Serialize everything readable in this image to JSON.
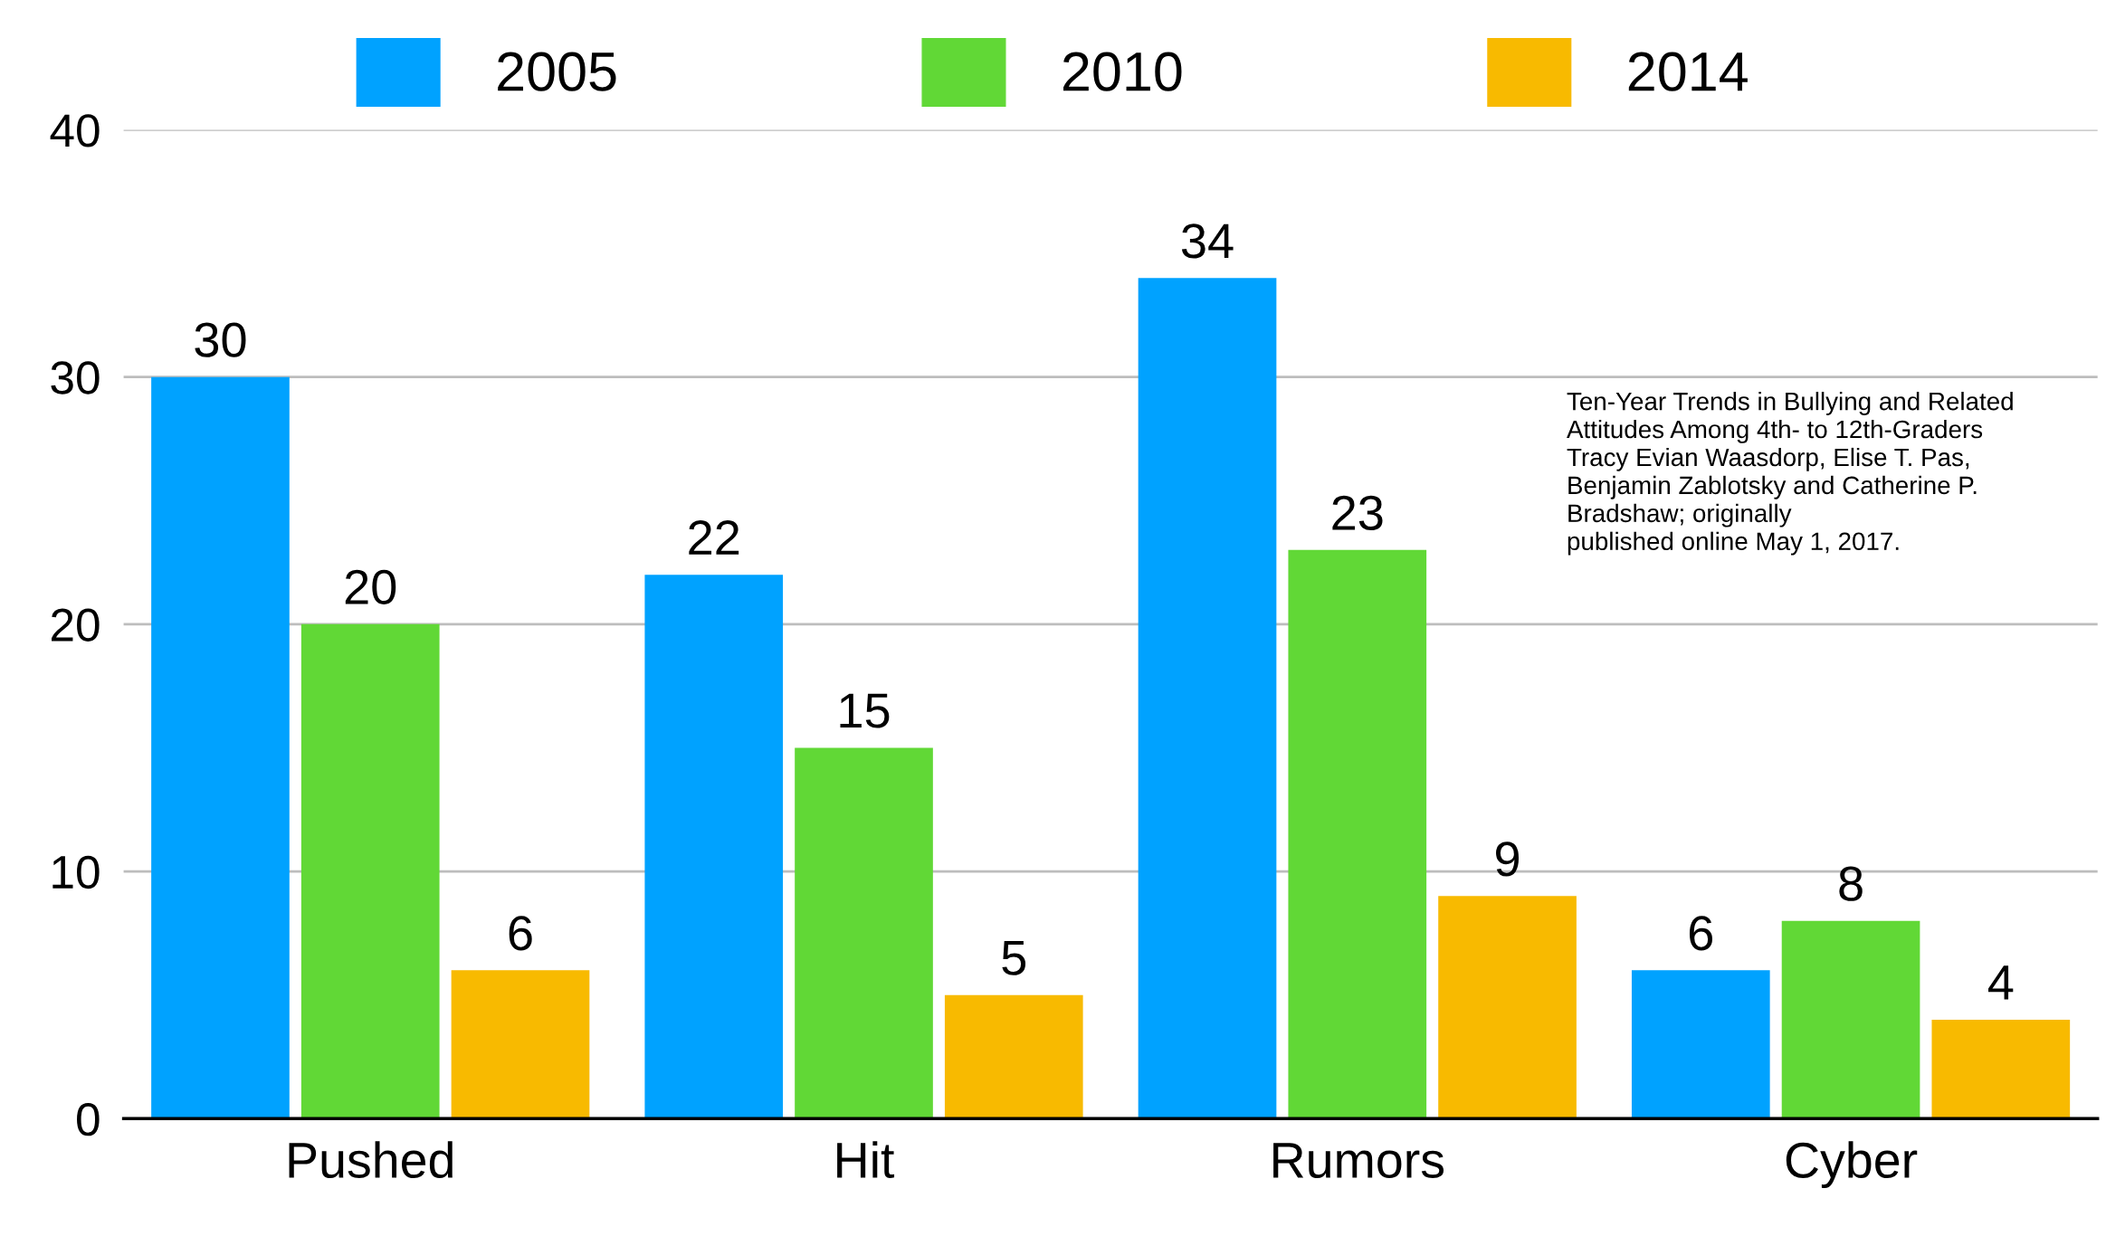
{
  "chart_data": {
    "type": "bar",
    "categories": [
      "Pushed",
      "Hit",
      "Rumors",
      "Cyber"
    ],
    "series": [
      {
        "name": "2005",
        "color": "#00a2ff",
        "values": [
          30,
          22,
          34,
          6
        ]
      },
      {
        "name": "2010",
        "color": "#61d836",
        "values": [
          20,
          15,
          23,
          8
        ]
      },
      {
        "name": "2014",
        "color": "#f8ba00",
        "values": [
          6,
          5,
          9,
          4
        ]
      }
    ],
    "ylim": [
      0,
      40
    ],
    "yticks": [
      0,
      10,
      20,
      30,
      40
    ],
    "grid": "y",
    "legend": "top",
    "data_labels": true,
    "annotations": [
      "Ten-Year Trends in Bullying and Related\nAttitudes Among 4th- to 12th-Graders\nTracy Evian Waasdorp, Elise T. Pas,\nBenjamin Zablotsky and Catherine P.\nBradshaw; originally\npublished online May 1, 2017."
    ]
  }
}
